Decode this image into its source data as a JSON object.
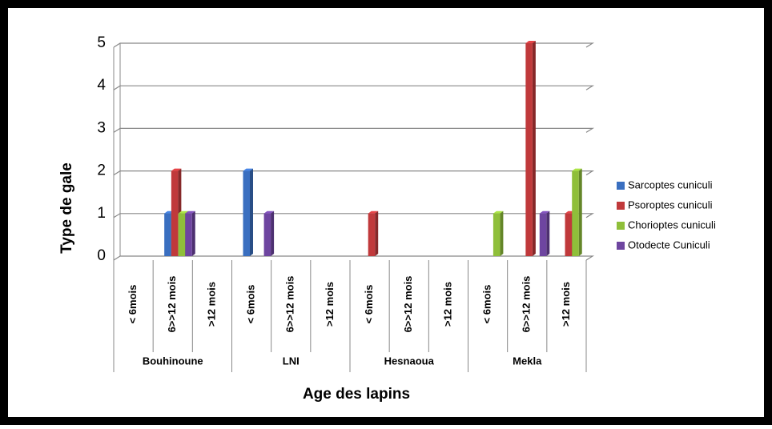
{
  "chart_data": {
    "type": "bar",
    "y_label": "Type de gale",
    "x_label": "Age des lapins",
    "groups": [
      "Bouhinoune",
      "LNI",
      "Hesnaoua",
      "Mekla"
    ],
    "categories": [
      "< 6mois",
      "6>>12 mois",
      ">12 mois",
      "< 6mois",
      "6>>12 mois",
      ">12 mois",
      "< 6mois",
      "6>>12 mois",
      ">12 mois",
      "< 6mois",
      "6>>12 mois",
      ">12 mois"
    ],
    "series": [
      {
        "name": "Sarcoptes cuniculi",
        "color": "#3a6fc0",
        "values": [
          0,
          1,
          0,
          2,
          0,
          0,
          0,
          0,
          0,
          0,
          0,
          0
        ]
      },
      {
        "name": "Psoroptes  cuniculi",
        "color": "#c0393b",
        "values": [
          0,
          2,
          0,
          0,
          0,
          0,
          1,
          0,
          0,
          0,
          5,
          1
        ]
      },
      {
        "name": "Chorioptes cuniculi",
        "color": "#8fbf3a",
        "values": [
          0,
          1,
          0,
          0,
          0,
          0,
          0,
          0,
          0,
          1,
          0,
          2
        ]
      },
      {
        "name": "Otodecte Cuniculi",
        "color": "#6e45a0",
        "values": [
          0,
          1,
          0,
          1,
          0,
          0,
          0,
          0,
          0,
          0,
          1,
          0
        ]
      }
    ],
    "ylim": [
      0,
      5
    ],
    "yticks": [
      0,
      1,
      2,
      3,
      4,
      5
    ],
    "grid": true
  }
}
